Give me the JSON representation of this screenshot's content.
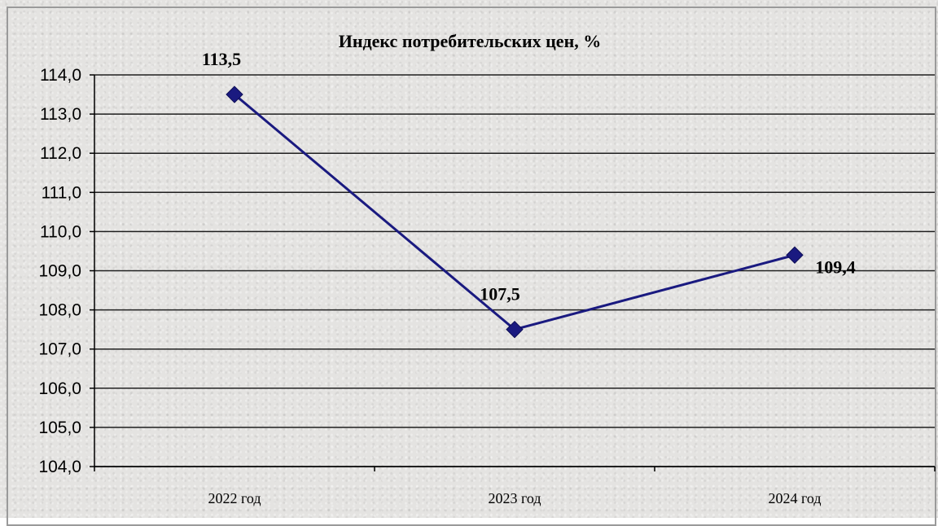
{
  "chart_data": {
    "type": "line",
    "title": "Индекс потребительских цен, %",
    "categories": [
      "2022 год",
      "2023 год",
      "2024 год"
    ],
    "series": [
      {
        "values": [
          113.5,
          107.5,
          109.4
        ],
        "data_labels": [
          "113,5",
          "107,5",
          "109,4"
        ]
      }
    ],
    "ylim": [
      104.0,
      114.0
    ],
    "yticks": [
      "104,0",
      "105,0",
      "106,0",
      "107,0",
      "108,0",
      "109,0",
      "110,0",
      "111,0",
      "112,0",
      "113,0",
      "114,0"
    ],
    "grid": true,
    "legend": false,
    "colors": {
      "series": "#1a1a80",
      "grid": "#1e1e1e",
      "background": "#e4e3e1"
    }
  }
}
